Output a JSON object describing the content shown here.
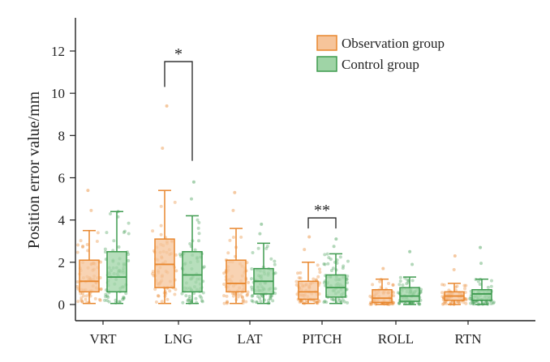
{
  "chart_data": {
    "type": "box",
    "ylabel": "Position error value/mm",
    "xlabel": "",
    "ylim": [
      -0.3,
      13.5
    ],
    "yticks": [
      0,
      2,
      4,
      6,
      8,
      10,
      12
    ],
    "categories": [
      "VRT",
      "LNG",
      "LAT",
      "PITCH",
      "ROLL",
      "RTN"
    ],
    "legend": {
      "placement": "top-right"
    },
    "series": [
      {
        "name": "Observation group",
        "color": "#E8872E",
        "fill": "#F6C49A",
        "boxes": [
          {
            "whisker_low": 0.05,
            "q1": 0.6,
            "median": 1.1,
            "q3": 2.1,
            "whisker_high": 3.5,
            "max_point": 5.4
          },
          {
            "whisker_low": 0.05,
            "q1": 0.8,
            "median": 1.9,
            "q3": 3.1,
            "whisker_high": 5.4,
            "max_point": 9.4
          },
          {
            "whisker_low": 0.05,
            "q1": 0.6,
            "median": 1.0,
            "q3": 2.1,
            "whisker_high": 3.6,
            "max_point": 5.3
          },
          {
            "whisker_low": 0.05,
            "q1": 0.25,
            "median": 0.6,
            "q3": 1.1,
            "whisker_high": 2.0,
            "max_point": 3.2
          },
          {
            "whisker_low": 0.0,
            "q1": 0.1,
            "median": 0.3,
            "q3": 0.7,
            "whisker_high": 1.2,
            "max_point": 1.7
          },
          {
            "whisker_low": 0.0,
            "q1": 0.2,
            "median": 0.4,
            "q3": 0.6,
            "whisker_high": 1.0,
            "max_point": 2.3
          }
        ]
      },
      {
        "name": "Control group",
        "color": "#3E9B4F",
        "fill": "#9FD4A6",
        "boxes": [
          {
            "whisker_low": 0.05,
            "q1": 0.6,
            "median": 1.3,
            "q3": 2.5,
            "whisker_high": 4.4,
            "max_point": 4.4
          },
          {
            "whisker_low": 0.05,
            "q1": 0.6,
            "median": 1.4,
            "q3": 2.5,
            "whisker_high": 4.2,
            "max_point": 5.8
          },
          {
            "whisker_low": 0.05,
            "q1": 0.5,
            "median": 1.1,
            "q3": 1.7,
            "whisker_high": 2.9,
            "max_point": 3.8
          },
          {
            "whisker_low": 0.05,
            "q1": 0.35,
            "median": 0.8,
            "q3": 1.4,
            "whisker_high": 2.4,
            "max_point": 3.1
          },
          {
            "whisker_low": 0.0,
            "q1": 0.15,
            "median": 0.4,
            "q3": 0.8,
            "whisker_high": 1.3,
            "max_point": 2.5
          },
          {
            "whisker_low": 0.0,
            "q1": 0.2,
            "median": 0.5,
            "q3": 0.7,
            "whisker_high": 1.2,
            "max_point": 2.7
          }
        ]
      }
    ],
    "annotations": [
      {
        "label": "*",
        "category": "LNG",
        "left_y": 10.3,
        "right_y": 6.8,
        "top_y": 11.5
      },
      {
        "label": "**",
        "category": "PITCH",
        "left_y": 3.6,
        "right_y": 3.6,
        "top_y": 4.1
      }
    ]
  }
}
